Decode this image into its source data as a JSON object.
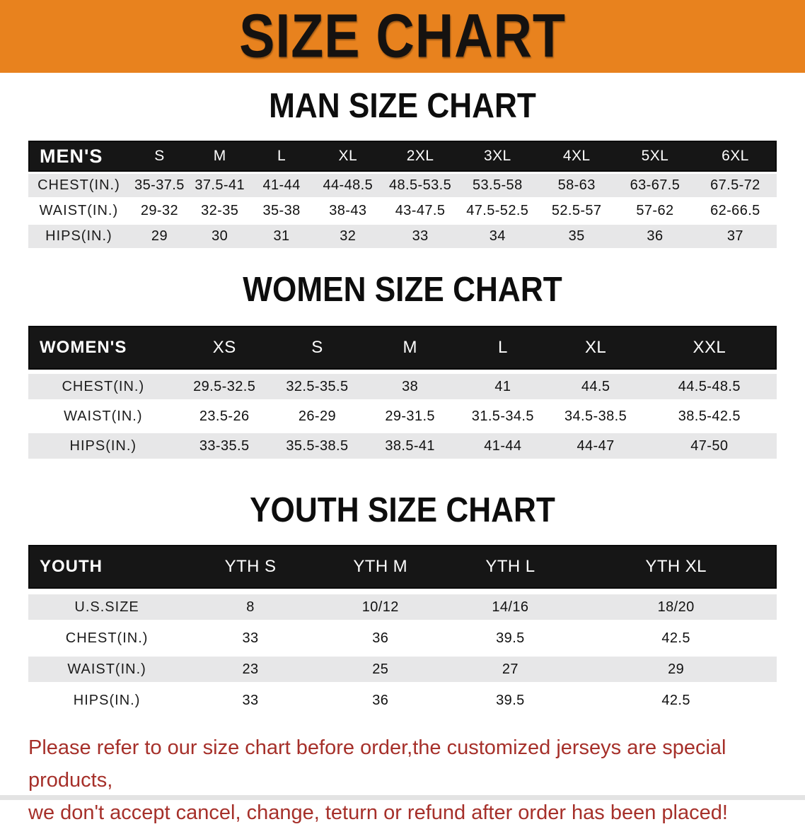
{
  "banner": {
    "title": "SIZE CHART"
  },
  "colors": {
    "banner_bg": "#E8821E",
    "table_header_bg": "#161616",
    "row_stripe": "#E7E7E8",
    "disclaimer_red": "#A6302A"
  },
  "sections": [
    {
      "heading": "MAN SIZE CHART",
      "table": {
        "header": [
          "MEN'S",
          "S",
          "M",
          "L",
          "XL",
          "2XL",
          "3XL",
          "4XL",
          "5XL",
          "6XL"
        ],
        "rows": [
          [
            "CHEST(IN.)",
            "35-37.5",
            "37.5-41",
            "41-44",
            "44-48.5",
            "48.5-53.5",
            "53.5-58",
            "58-63",
            "63-67.5",
            "67.5-72"
          ],
          [
            "WAIST(IN.)",
            "29-32",
            "32-35",
            "35-38",
            "38-43",
            "43-47.5",
            "47.5-52.5",
            "52.5-57",
            "57-62",
            "62-66.5"
          ],
          [
            "HIPS(IN.)",
            "29",
            "30",
            "31",
            "32",
            "33",
            "34",
            "35",
            "36",
            "37"
          ]
        ]
      }
    },
    {
      "heading": "WOMEN SIZE CHART",
      "table": {
        "header": [
          "WOMEN'S",
          "XS",
          "S",
          "M",
          "L",
          "XL",
          "XXL"
        ],
        "rows": [
          [
            "CHEST(IN.)",
            "29.5-32.5",
            "32.5-35.5",
            "38",
            "41",
            "44.5",
            "44.5-48.5"
          ],
          [
            "WAIST(IN.)",
            "23.5-26",
            "26-29",
            "29-31.5",
            "31.5-34.5",
            "34.5-38.5",
            "38.5-42.5"
          ],
          [
            "HIPS(IN.)",
            "33-35.5",
            "35.5-38.5",
            "38.5-41",
            "41-44",
            "44-47",
            "47-50"
          ]
        ]
      }
    },
    {
      "heading": "YOUTH SIZE CHART",
      "table": {
        "header": [
          "YOUTH",
          "YTH S",
          "YTH M",
          "YTH L",
          "YTH XL"
        ],
        "rows": [
          [
            "U.S.SIZE",
            "8",
            "10/12",
            "14/16",
            "18/20"
          ],
          [
            "CHEST(IN.)",
            "33",
            "36",
            "39.5",
            "42.5"
          ],
          [
            "WAIST(IN.)",
            "23",
            "25",
            "27",
            "29"
          ],
          [
            "HIPS(IN.)",
            "33",
            "36",
            "39.5",
            "42.5"
          ]
        ]
      }
    }
  ],
  "disclaimer": {
    "line1": "Please refer to our size chart before order,the customized jerseys are special products,",
    "line2": "we don't accept cancel, change, teturn or refund after order has been placed!"
  }
}
